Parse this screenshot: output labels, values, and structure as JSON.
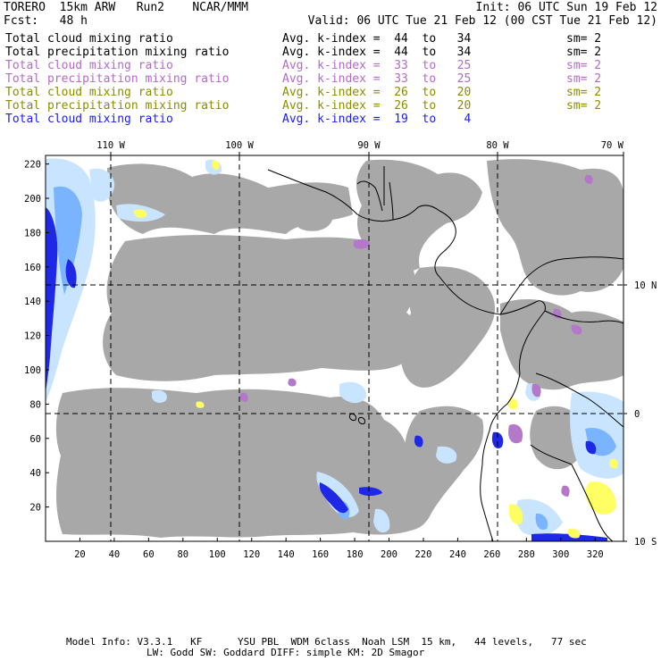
{
  "header": {
    "line1_left": "TORERO  15km ARW   Run2    NCAR/MMM",
    "line1_right": "Init: 06 UTC Sun 19 Feb 12",
    "line2_left": "Fcst:   48 h",
    "line2_right": "Valid: 06 UTC Tue 21 Feb 12 (00 CST Tue 21 Feb 12)"
  },
  "fields": [
    {
      "name": "Total cloud mixing ratio",
      "stat": "Avg. k-index =  44  to   34",
      "sm": "sm= 2",
      "color": "#000000"
    },
    {
      "name": "Total precipitation mixing ratio",
      "stat": "Avg. k-index =  44  to   34",
      "sm": "sm= 2",
      "color": "#000000"
    },
    {
      "name": "Total cloud mixing ratio",
      "stat": "Avg. k-index =  33  to   25",
      "sm": "sm= 2",
      "color": "#b46ac8"
    },
    {
      "name": "Total precipitation mixing ratio",
      "stat": "Avg. k-index =  33  to   25",
      "sm": "sm= 2",
      "color": "#b46ac8"
    },
    {
      "name": "Total cloud mixing ratio",
      "stat": "Avg. k-index =  26  to   20",
      "sm": "sm= 2",
      "color": "#8c8c00"
    },
    {
      "name": "Total precipitation mixing ratio",
      "stat": "Avg. k-index =  26  to   20",
      "sm": "sm= 2",
      "color": "#8c8c00"
    },
    {
      "name": "Total cloud mixing ratio",
      "stat": "Avg. k-index =  19  to    4",
      "sm": "",
      "color": "#1a1aff"
    }
  ],
  "map": {
    "lon_labels": [
      "110 W",
      "100 W",
      "90 W",
      "80 W",
      "70 W"
    ],
    "lat_labels": [
      "10 N",
      "0",
      "10 S"
    ],
    "x_ticks": [
      "20",
      "40",
      "60",
      "80",
      "100",
      "120",
      "140",
      "160",
      "180",
      "200",
      "220",
      "240",
      "260",
      "280",
      "300",
      "320"
    ],
    "y_ticks": [
      "220",
      "200",
      "180",
      "160",
      "140",
      "120",
      "100",
      "80",
      "60",
      "40",
      "20"
    ],
    "colors": {
      "cloud_gray": "#a8a8a8",
      "light_blue": "#c8e4ff",
      "mid_blue": "#7ab4ff",
      "dark_blue": "#1e28e6",
      "purple": "#b478c8",
      "yellow": "#ffff64",
      "coast": "#000000"
    }
  },
  "footer": {
    "line1": "Model Info: V3.3.1   KF      YSU PBL  WDM 6class  Noah LSM  15 km,   44 levels,   77 sec",
    "line2": "LW: Godd SW: Goddard DIFF: simple KM: 2D Smagor"
  }
}
